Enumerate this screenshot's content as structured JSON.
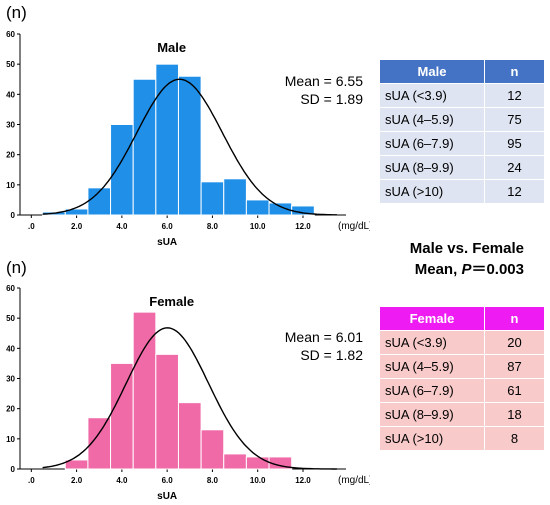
{
  "chart_data": [
    {
      "type": "bar",
      "title": "Male",
      "ylabel_unit": "(n)",
      "xlabel": "sUA",
      "x_unit": "(mg/dL)",
      "ylim": [
        0,
        60
      ],
      "yticks": [
        "0",
        "10",
        "20",
        "30",
        "40",
        "50",
        "60"
      ],
      "xticks": [
        ".0",
        "2.0",
        "4.0",
        "6.0",
        "8.0",
        "10.0",
        "12.0"
      ],
      "bin_width": 1.0,
      "bins": [
        1,
        2,
        3,
        4,
        5,
        6,
        7,
        8,
        9,
        10,
        11,
        12,
        13
      ],
      "values": [
        1,
        2,
        9,
        30,
        45,
        50,
        46,
        11,
        12,
        5,
        4,
        3,
        0
      ],
      "mean_label": "Mean = 6.55",
      "sd_label": "SD = 1.89",
      "mean": 6.55,
      "sd": 1.89,
      "bar_color": "#1f8fe8",
      "curve": "normal"
    },
    {
      "type": "bar",
      "title": "Female",
      "ylabel_unit": "(n)",
      "xlabel": "sUA",
      "x_unit": "(mg/dL)",
      "ylim": [
        0,
        60
      ],
      "yticks": [
        "0",
        "10",
        "20",
        "30",
        "40",
        "50",
        "60"
      ],
      "xticks": [
        ".0",
        "2.0",
        "4.0",
        "6.0",
        "8.0",
        "10.0",
        "12.0"
      ],
      "bin_width": 1.0,
      "bins": [
        1,
        2,
        3,
        4,
        5,
        6,
        7,
        8,
        9,
        10,
        11,
        12
      ],
      "values": [
        0,
        3,
        17,
        35,
        52,
        38,
        22,
        13,
        5,
        4,
        4,
        0
      ],
      "mean_label": "Mean = 6.01",
      "sd_label": "SD = 1.82",
      "mean": 6.01,
      "sd": 1.82,
      "bar_color": "#f06aa8",
      "curve": "normal"
    }
  ],
  "comparison": {
    "line1": "Male vs. Female",
    "line2_prefix": "Mean, ",
    "line2_p": "P",
    "line2_suffix": "＝0.003"
  },
  "tables": {
    "male": {
      "header": [
        "Male",
        "n"
      ],
      "rows": [
        [
          "sUA (<3.9)",
          "12"
        ],
        [
          "sUA (4–5.9)",
          "75"
        ],
        [
          "sUA (6–7.9)",
          "95"
        ],
        [
          "sUA (8–9.9)",
          "24"
        ],
        [
          "sUA (>10)",
          "12"
        ]
      ]
    },
    "female": {
      "header": [
        "Female",
        "n"
      ],
      "rows": [
        [
          "sUA (<3.9)",
          "20"
        ],
        [
          "sUA (4–5.9)",
          "87"
        ],
        [
          "sUA (6–7.9)",
          "61"
        ],
        [
          "sUA (8–9.9)",
          "18"
        ],
        [
          "sUA (>10)",
          "8"
        ]
      ]
    }
  }
}
